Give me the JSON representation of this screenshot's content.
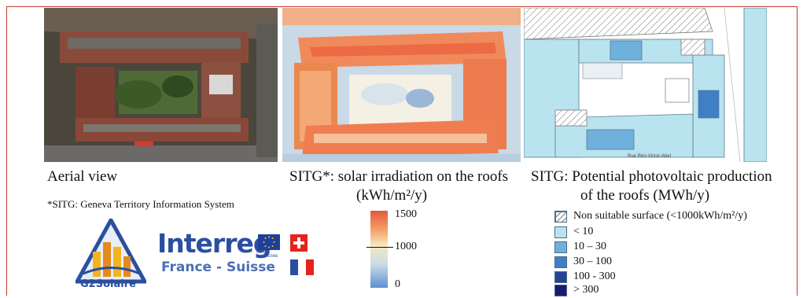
{
  "captions": {
    "aerial": "Aerial view",
    "irradiation_line1": "SITG*: solar irradiation on the roofs",
    "irradiation_line2": "(kWh/m²/y)",
    "pv_line1": "SITG: Potential photovoltaic production",
    "pv_line2": "of the roofs (MWh/y)"
  },
  "footnote": "*SITG: Geneva Territory Information System",
  "irradiation_scale": {
    "max": "1500",
    "mid": "1000",
    "min": "0"
  },
  "pv_legend": [
    {
      "label": "Non suitable surface (<1000kWh/m²/y)",
      "color": "hatched"
    },
    {
      "label": "< 10",
      "color": "#b9e3ee"
    },
    {
      "label": "10 – 30",
      "color": "#6fb0dc"
    },
    {
      "label": "30 – 100",
      "color": "#3f7fc6"
    },
    {
      "label": "100 - 300",
      "color": "#23449a"
    },
    {
      "label": "> 300",
      "color": "#1b1a6e"
    }
  ],
  "logos": {
    "project_name": "G2Solaire",
    "program_name": "Interreg",
    "program_region": "France - Suisse",
    "eu_label_line1": "UNION",
    "eu_label_line2": "EUROPÉENNE"
  },
  "map_labels": {
    "street": "Rue Ren-Victor-Abel"
  },
  "colors": {
    "frame": "#c0392b",
    "interreg_blue": "#2b4fa0",
    "g2_yellow": "#f5b320",
    "swiss_red": "#e3231c"
  }
}
